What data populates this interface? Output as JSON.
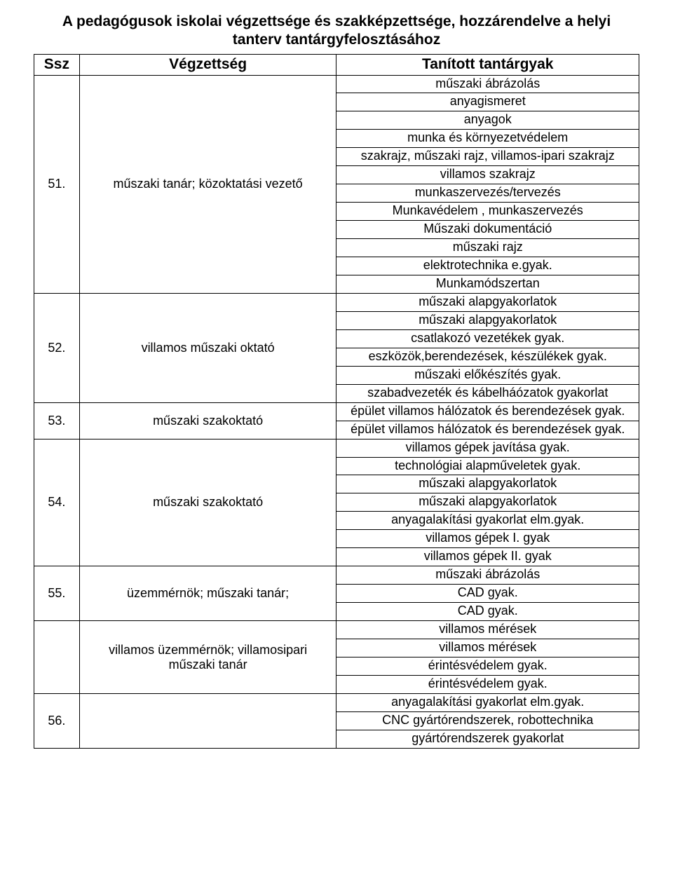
{
  "heading_line1": "A pedagógusok iskolai végzettsége és szakképzettsége, hozzárendelve a helyi",
  "heading_line2": "tanterv tantárgyfelosztásához",
  "headers": {
    "ssz": "Ssz",
    "vegzettseg": "Végzettség",
    "tanitott": "Tanított tantárgyak"
  },
  "rows": [
    {
      "ssz": "51.",
      "vegzettseg": "műszaki tanár; közoktatási vezető",
      "subjects": [
        "műszaki ábrázolás",
        "anyagismeret",
        "anyagok",
        "munka és környezetvédelem",
        "szakrajz, műszaki rajz, villamos-ipari szakrajz",
        "villamos szakrajz",
        "munkaszervezés/tervezés",
        "Munkavédelem , munkaszervezés",
        "Műszaki dokumentáció",
        "műszaki rajz",
        "elektrotechnika e.gyak.",
        "Munkamódszertan"
      ]
    },
    {
      "ssz": "52.",
      "vegzettseg": "villamos műszaki oktató",
      "subjects": [
        "műszaki alapgyakorlatok",
        "műszaki alapgyakorlatok",
        "csatlakozó vezetékek gyak.",
        "eszközök,berendezések, készülékek gyak.",
        "műszaki előkészítés gyak.",
        "szabadvezeték és kábelháózatok gyakorlat"
      ]
    },
    {
      "ssz": "53.",
      "vegzettseg": "műszaki szakoktató",
      "subjects": [
        "épület villamos hálózatok és berendezések gyak.",
        "épület villamos hálózatok és berendezések gyak."
      ]
    },
    {
      "ssz": "54.",
      "vegzettseg": "műszaki szakoktató",
      "subjects": [
        "villamos gépek javítása gyak.",
        "technológiai alapműveletek gyak.",
        "műszaki alapgyakorlatok",
        "műszaki alapgyakorlatok",
        "anyagalakítási gyakorlat elm.gyak.",
        "villamos gépek I. gyak",
        "villamos gépek II. gyak"
      ]
    },
    {
      "ssz": "55.",
      "vegzettseg": "üzemmérnök; műszaki tanár;",
      "subjects": [
        "műszaki ábrázolás",
        "CAD gyak.",
        "CAD gyak."
      ]
    },
    {
      "ssz": "",
      "vegzettseg": "villamos üzemmérnök; villamosipari műszaki tanár",
      "subjects": [
        "villamos mérések",
        "villamos mérések",
        "érintésvédelem gyak.",
        "érintésvédelem gyak."
      ]
    },
    {
      "ssz": "56.",
      "vegzettseg": "",
      "subjects": [
        "anyagalakítási gyakorlat elm.gyak.",
        "CNC gyártórendszerek, robottechnika",
        "gyártórendszerek gyakorlat"
      ]
    }
  ]
}
